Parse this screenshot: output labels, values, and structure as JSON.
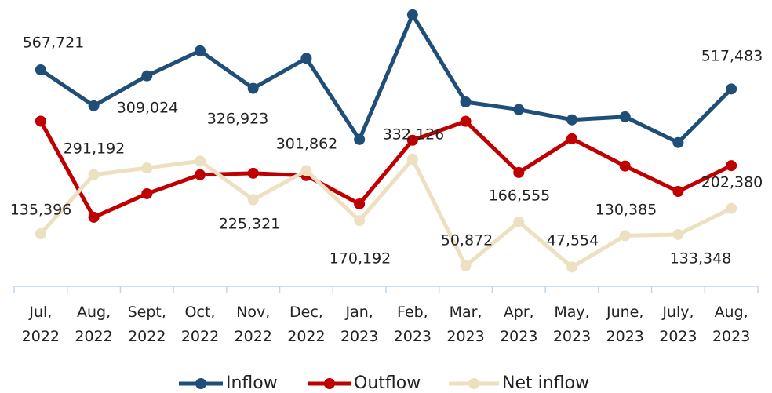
{
  "chart_data": {
    "type": "line",
    "categories": [
      "Jul, 2022",
      "Aug, 2022",
      "Sept, 2022",
      "Oct, 2022",
      "Nov, 2022",
      "Dec, 2022",
      "Jan, 2023",
      "Feb, 2023",
      "Mar, 2023",
      "Apr, 2023",
      "May, 2023",
      "June, 2023",
      "July, 2023",
      "Aug, 2023"
    ],
    "series": [
      {
        "name": "Inflow",
        "color": "#1f4e79",
        "values": [
          567721,
          473000,
          552000,
          618000,
          519000,
          598000,
          384000,
          713000,
          483000,
          463000,
          436000,
          444000,
          376000,
          517483
        ],
        "value_labels": [
          "567,721",
          null,
          null,
          null,
          null,
          null,
          null,
          null,
          null,
          null,
          null,
          null,
          null,
          "517,483"
        ]
      },
      {
        "name": "Outflow",
        "color": "#c00000",
        "values": [
          432325,
          179000,
          241000,
          291000,
          295000,
          289000,
          214000,
          382000,
          432000,
          297000,
          386000,
          314000,
          247000,
          315103
        ]
      },
      {
        "name": "Net inflow",
        "color": "#ede0c0",
        "values": [
          135396,
          291192,
          309024,
          326923,
          225321,
          301862,
          170192,
          332126,
          50872,
          166555,
          47554,
          130385,
          133348,
          202380
        ],
        "value_labels": [
          "135,396",
          "291,192",
          "309,024",
          "326,923",
          "225,321",
          "301,862",
          "170,192",
          "332,126",
          "50,872",
          "166,555",
          "47,554",
          "130,385",
          "133,348",
          "202,380"
        ]
      }
    ],
    "ylim": [
      0,
      752000
    ]
  }
}
